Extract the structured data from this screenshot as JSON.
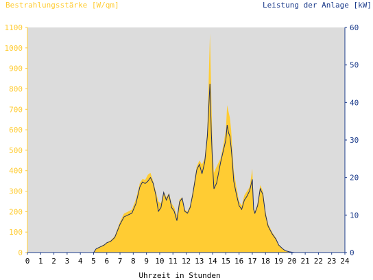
{
  "chart_data": {
    "type": "area",
    "left_axis_label": "Bestrahlungsstärke [W/qm]",
    "right_axis_label": "Leistung der Anlage [kW]",
    "xlabel": "Uhrzeit in Stunden",
    "xlim": [
      0,
      24
    ],
    "ylim_left": [
      0,
      1100
    ],
    "ylim_right": [
      0,
      60
    ],
    "x_ticks": [
      "0",
      "1",
      "2",
      "3",
      "4",
      "5",
      "6",
      "7",
      "8",
      "9",
      "10",
      "11",
      "12",
      "13",
      "14",
      "15",
      "16",
      "17",
      "18",
      "19",
      "20",
      "21",
      "22",
      "23",
      "24"
    ],
    "y_left_ticks": [
      "0",
      "100",
      "200",
      "300",
      "400",
      "500",
      "600",
      "700",
      "800",
      "900",
      "1000",
      "1100"
    ],
    "y_right_ticks": [
      "0",
      "10",
      "20",
      "30",
      "40",
      "50",
      "60"
    ],
    "colors": {
      "plot_bg": "#dcdcdc",
      "irradiance_fill": "#ffcc33",
      "left_axis": "#ffcc33",
      "power_line": "#1a2a66",
      "right_axis": "#1a3a8a"
    },
    "series": [
      {
        "axis": "left",
        "style": "filled-area",
        "x": [
          0,
          5.0,
          5.2,
          5.5,
          5.8,
          6.0,
          6.3,
          6.6,
          7.0,
          7.3,
          7.6,
          7.9,
          8.2,
          8.5,
          8.7,
          8.9,
          9.1,
          9.3,
          9.5,
          9.7,
          9.9,
          10.1,
          10.3,
          10.5,
          10.7,
          10.9,
          11.1,
          11.3,
          11.5,
          11.7,
          11.9,
          12.1,
          12.3,
          12.5,
          12.8,
          13.0,
          13.2,
          13.4,
          13.6,
          13.8,
          13.9,
          14.0,
          14.1,
          14.3,
          14.6,
          14.8,
          15.0,
          15.1,
          15.2,
          15.3,
          15.4,
          15.5,
          15.6,
          15.8,
          16.0,
          16.2,
          16.4,
          16.6,
          16.8,
          17.0,
          17.1,
          17.2,
          17.4,
          17.6,
          17.8,
          18.0,
          18.2,
          18.5,
          18.8,
          19.0,
          19.3,
          19.5,
          19.8,
          20.0,
          20.2,
          24
        ],
        "values": [
          0,
          0,
          20,
          30,
          40,
          50,
          60,
          80,
          150,
          190,
          200,
          210,
          260,
          340,
          360,
          355,
          380,
          390,
          350,
          300,
          250,
          240,
          300,
          270,
          290,
          240,
          220,
          180,
          260,
          270,
          210,
          200,
          230,
          300,
          420,
          450,
          430,
          460,
          600,
          1070,
          760,
          500,
          390,
          420,
          460,
          520,
          600,
          720,
          690,
          660,
          600,
          500,
          400,
          320,
          250,
          230,
          280,
          300,
          320,
          410,
          220,
          200,
          240,
          330,
          300,
          200,
          140,
          100,
          70,
          40,
          20,
          10,
          5,
          2,
          0,
          0
        ]
      },
      {
        "axis": "right",
        "style": "line",
        "x": [
          0,
          5.0,
          5.2,
          5.5,
          5.8,
          6.0,
          6.3,
          6.6,
          7.0,
          7.3,
          7.6,
          7.9,
          8.2,
          8.5,
          8.7,
          8.9,
          9.1,
          9.3,
          9.5,
          9.7,
          9.9,
          10.1,
          10.3,
          10.5,
          10.7,
          10.9,
          11.1,
          11.3,
          11.5,
          11.7,
          11.9,
          12.1,
          12.3,
          12.5,
          12.8,
          13.0,
          13.2,
          13.4,
          13.6,
          13.8,
          13.9,
          14.0,
          14.1,
          14.3,
          14.6,
          14.8,
          15.0,
          15.1,
          15.2,
          15.3,
          15.4,
          15.5,
          15.6,
          15.8,
          16.0,
          16.2,
          16.4,
          16.6,
          16.8,
          17.0,
          17.1,
          17.2,
          17.4,
          17.6,
          17.8,
          18.0,
          18.2,
          18.5,
          18.8,
          19.0,
          19.3,
          19.5,
          19.8,
          20.0,
          20.2,
          24
        ],
        "values": [
          0,
          0,
          1.0,
          1.5,
          2.0,
          2.6,
          3.0,
          4.0,
          7.5,
          9.5,
          10.0,
          10.5,
          13.0,
          17.5,
          18.8,
          18.4,
          19.0,
          20.0,
          18.5,
          15.5,
          11.0,
          12.0,
          16.0,
          14.0,
          15.5,
          12.0,
          11.0,
          8.5,
          13.5,
          14.5,
          11.0,
          10.5,
          12.0,
          15.5,
          22.0,
          23.5,
          21.0,
          24.0,
          31.0,
          45.0,
          32.0,
          23.0,
          17.0,
          18.5,
          24.0,
          27.0,
          30.0,
          34.0,
          32.0,
          31.0,
          28.0,
          24.0,
          19.0,
          15.5,
          12.5,
          11.5,
          14.0,
          15.0,
          16.5,
          19.5,
          11.5,
          10.5,
          12.5,
          17.0,
          15.5,
          10.0,
          7.0,
          5.0,
          3.5,
          2.0,
          1.0,
          0.5,
          0.2,
          0.1,
          0,
          0
        ]
      }
    ]
  }
}
